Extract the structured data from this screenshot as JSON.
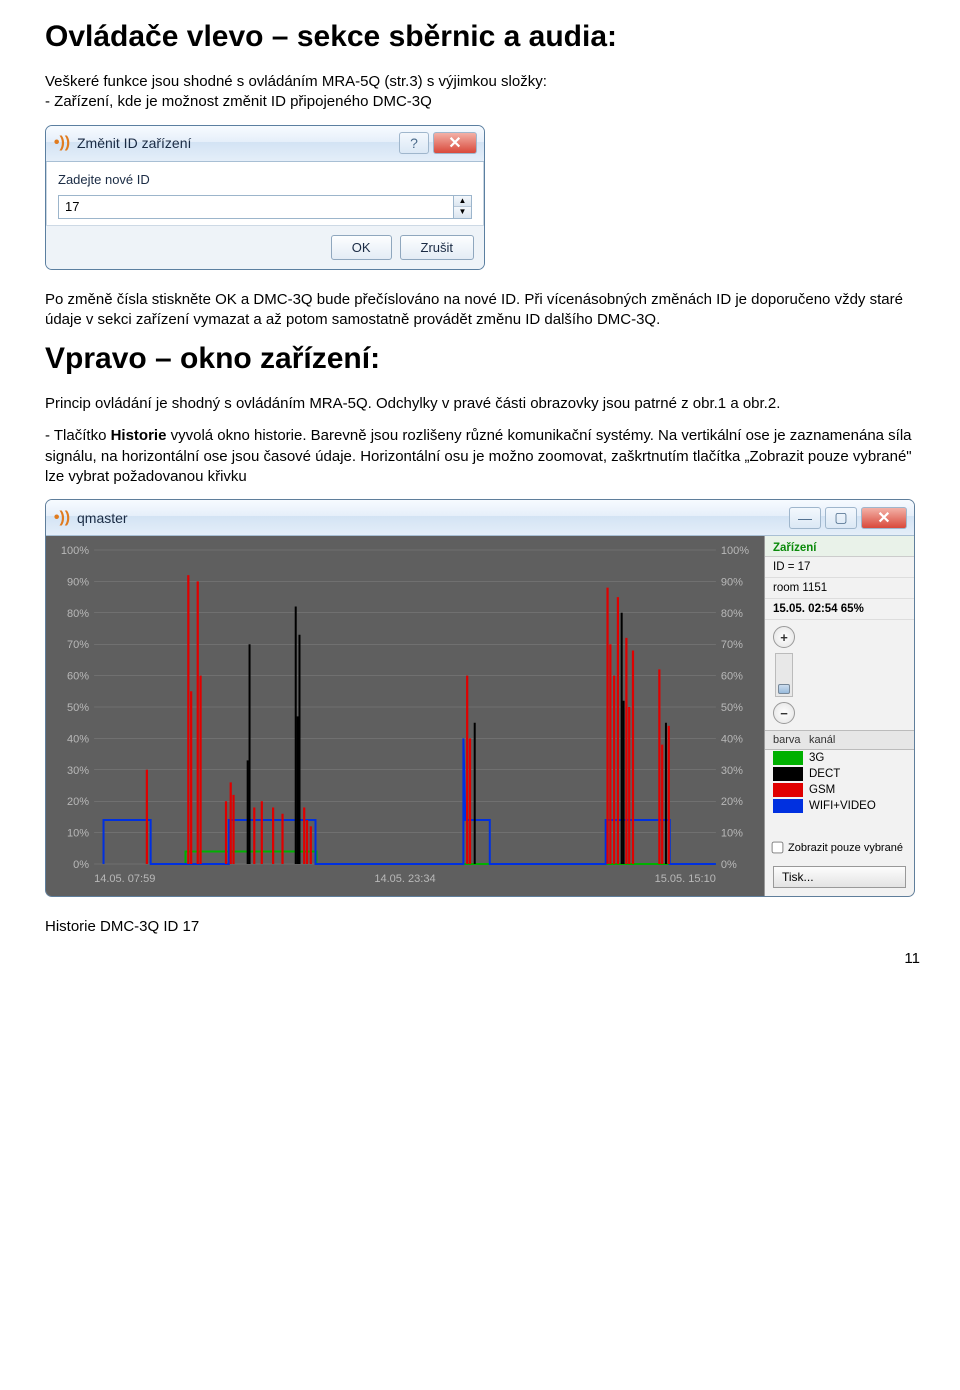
{
  "section1": {
    "heading": "Ovládače vlevo – sekce sběrnic a audia:",
    "para1a": "Veškeré funkce jsou shodné s ovládáním MRA-5Q (str.3) s výjimkou složky:",
    "para1b": "- Zařízení, kde je možnost změnit ID připojeného DMC-3Q"
  },
  "dialog1": {
    "title": "Změnit ID zařízení",
    "label": "Zadejte nové ID",
    "value": "17",
    "ok": "OK",
    "cancel": "Zrušit"
  },
  "section2": {
    "para2": "Po změně čísla stiskněte OK a DMC-3Q bude přečíslováno na nové ID. Při vícenásobných změnách ID je doporučeno vždy staré údaje v sekci zařízení vymazat a až potom samostatně provádět změnu ID dalšího DMC-3Q.",
    "heading": "Vpravo – okno zařízení:",
    "para3": "Princip ovládání je shodný s ovládáním MRA-5Q. Odchylky v pravé části obrazovky jsou patrné z obr.1 a obr.2.",
    "para4a": "- Tlačítko ",
    "para4b": "Historie",
    "para4c": " vyvolá okno historie. Barevně jsou rozlišeny různé komunikační systémy. Na vertikální ose je zaznamenána síla signálu, na horizontální ose jsou časové údaje. Horizontální osu je možno zoomovat, zaškrtnutím tlačítka „Zobrazit pouze vybrané\" lze vybrat požadovanou křivku"
  },
  "qmaster": {
    "title": "qmaster",
    "sidebar": {
      "header": "Zařízení",
      "id_label": "ID = 17",
      "room": "room 1151",
      "datetime": "15.05. 02:54 65%",
      "legend_header_color": "barva",
      "legend_header_ch": "kanál",
      "legend": [
        {
          "color": "#00b000",
          "label": "3G"
        },
        {
          "color": "#000000",
          "label": "DECT"
        },
        {
          "color": "#e00000",
          "label": "GSM"
        },
        {
          "color": "#0030e0",
          "label": "WIFI+VIDEO"
        }
      ],
      "checkbox": "Zobrazit pouze vybrané",
      "print": "Tisk..."
    },
    "chart": {
      "background": "#5f5f5f",
      "grid_color": "#808080",
      "axis_text_color": "#b8b8b8",
      "ymax": 100,
      "ytick_step": 10,
      "ylabels": [
        "100%",
        "90%",
        "80%",
        "70%",
        "60%",
        "50%",
        "40%",
        "30%",
        "20%",
        "10%",
        "0%"
      ],
      "xlabels": [
        "14.05. 07:59",
        "14.05. 23:34",
        "15.05. 15:10"
      ],
      "series": {
        "blue": {
          "color": "#0030e0",
          "points": [
            {
              "x": 10,
              "y": 0
            },
            {
              "x": 10,
              "y": 14
            },
            {
              "x": 60,
              "y": 14
            },
            {
              "x": 60,
              "y": 0
            },
            {
              "x": 143,
              "y": 0
            },
            {
              "x": 143,
              "y": 14
            },
            {
              "x": 235,
              "y": 14
            },
            {
              "x": 235,
              "y": 0
            },
            {
              "x": 392,
              "y": 0
            },
            {
              "x": 392,
              "y": 40
            },
            {
              "x": 394,
              "y": 14
            },
            {
              "x": 420,
              "y": 14
            },
            {
              "x": 420,
              "y": 0
            },
            {
              "x": 543,
              "y": 0
            },
            {
              "x": 543,
              "y": 14
            },
            {
              "x": 611,
              "y": 14
            },
            {
              "x": 611,
              "y": 0
            },
            {
              "x": 660,
              "y": 0
            }
          ]
        },
        "green": {
          "color": "#00b000",
          "points": [
            {
              "x": 97,
              "y": 0
            },
            {
              "x": 97,
              "y": 4
            },
            {
              "x": 236,
              "y": 4
            },
            {
              "x": 236,
              "y": 0
            },
            {
              "x": 660,
              "y": 0
            }
          ]
        },
        "black": {
          "color": "#000000",
          "bars": [
            {
              "x": 163,
              "y": 33
            },
            {
              "x": 165,
              "y": 70
            },
            {
              "x": 214,
              "y": 82
            },
            {
              "x": 216,
              "y": 47
            },
            {
              "x": 218,
              "y": 73
            },
            {
              "x": 404,
              "y": 45
            },
            {
              "x": 560,
              "y": 80
            },
            {
              "x": 562,
              "y": 52
            },
            {
              "x": 607,
              "y": 45
            }
          ]
        },
        "red": {
          "color": "#e00000",
          "bars": [
            {
              "x": 56,
              "y": 30
            },
            {
              "x": 100,
              "y": 92
            },
            {
              "x": 103,
              "y": 55
            },
            {
              "x": 110,
              "y": 90
            },
            {
              "x": 113,
              "y": 60
            },
            {
              "x": 140,
              "y": 20
            },
            {
              "x": 145,
              "y": 26
            },
            {
              "x": 148,
              "y": 22
            },
            {
              "x": 170,
              "y": 18
            },
            {
              "x": 178,
              "y": 20
            },
            {
              "x": 190,
              "y": 18
            },
            {
              "x": 200,
              "y": 16
            },
            {
              "x": 223,
              "y": 18
            },
            {
              "x": 226,
              "y": 14
            },
            {
              "x": 230,
              "y": 12
            },
            {
              "x": 396,
              "y": 60
            },
            {
              "x": 399,
              "y": 40
            },
            {
              "x": 545,
              "y": 88
            },
            {
              "x": 548,
              "y": 70
            },
            {
              "x": 552,
              "y": 60
            },
            {
              "x": 556,
              "y": 85
            },
            {
              "x": 565,
              "y": 72
            },
            {
              "x": 568,
              "y": 50
            },
            {
              "x": 572,
              "y": 68
            },
            {
              "x": 600,
              "y": 62
            },
            {
              "x": 603,
              "y": 38
            },
            {
              "x": 610,
              "y": 44
            }
          ]
        }
      }
    }
  },
  "footer": {
    "caption": "Historie DMC-3Q   ID 17",
    "page": "11"
  }
}
